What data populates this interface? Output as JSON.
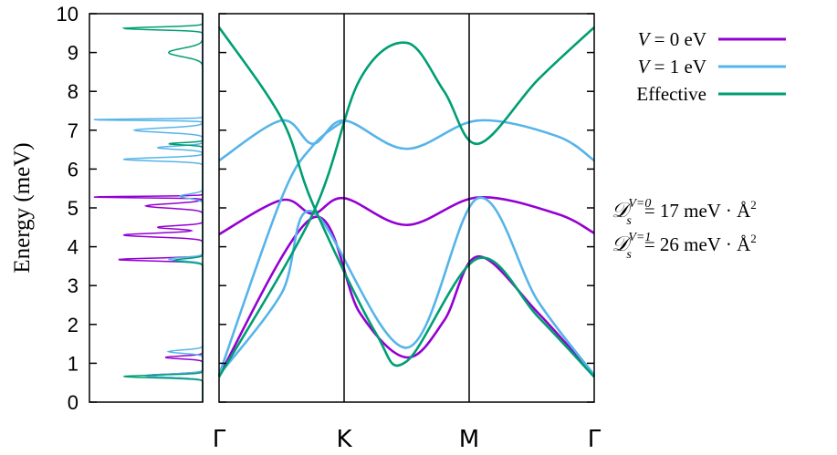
{
  "chart_data": [
    {
      "type": "line",
      "panel": "density-of-states",
      "ylabel": "Energy (meV)",
      "ylim": [
        0,
        10
      ],
      "yticks": [
        "0",
        "1",
        "2",
        "3",
        "4",
        "5",
        "6",
        "7",
        "8",
        "9",
        "10"
      ],
      "series": [
        {
          "color": "#9400d3",
          "peaks": [
            {
              "e": 0.68,
              "w": 0.06,
              "a": 0.5
            },
            {
              "e": 1.15,
              "w": 0.05,
              "a": 0.33
            },
            {
              "e": 3.67,
              "w": 0.05,
              "a": 0.75
            },
            {
              "e": 4.3,
              "w": 0.07,
              "a": 0.7
            },
            {
              "e": 4.5,
              "w": 0.06,
              "a": 0.4
            },
            {
              "e": 5.05,
              "w": 0.08,
              "a": 0.5
            },
            {
              "e": 5.28,
              "w": 0.025,
              "a": 1.0
            }
          ]
        },
        {
          "color": "#56b4e9",
          "peaks": [
            {
              "e": 0.68,
              "w": 0.06,
              "a": 0.5
            },
            {
              "e": 1.3,
              "w": 0.06,
              "a": 0.3
            },
            {
              "e": 3.68,
              "w": 0.06,
              "a": 0.3
            },
            {
              "e": 5.3,
              "w": 0.08,
              "a": 0.2
            },
            {
              "e": 6.25,
              "w": 0.06,
              "a": 0.7
            },
            {
              "e": 6.55,
              "w": 0.06,
              "a": 0.4
            },
            {
              "e": 7.0,
              "w": 0.08,
              "a": 0.6
            },
            {
              "e": 7.27,
              "w": 0.025,
              "a": 1.0
            }
          ]
        },
        {
          "color": "#009e73",
          "peaks": [
            {
              "e": 0.66,
              "w": 0.05,
              "a": 0.7
            },
            {
              "e": 3.65,
              "w": 0.06,
              "a": 0.25
            },
            {
              "e": 6.65,
              "w": 0.04,
              "a": 0.3
            },
            {
              "e": 9.0,
              "w": 0.15,
              "a": 0.3
            },
            {
              "e": 9.62,
              "w": 0.05,
              "a": 0.7
            }
          ]
        }
      ]
    },
    {
      "type": "line",
      "panel": "band-structure",
      "ylim": [
        0,
        10
      ],
      "x_ticks": [
        "Γ",
        "K",
        "M",
        "Γ"
      ],
      "legend_placement": "right",
      "series": [
        {
          "name": "V = 0 eV",
          "color": "#9400d3",
          "points": [
            {
              "x": 0,
              "y": 4.32
            },
            {
              "x": 0.333,
              "y": 5.2
            },
            {
              "x": 0.5,
              "y": 4.85
            },
            {
              "x": 0.667,
              "y": 5.25
            },
            {
              "x": 1.0,
              "y": 4.56
            },
            {
              "x": 1.38,
              "y": 5.27
            },
            {
              "x": 1.8,
              "y": 4.85
            },
            {
              "x": 2.0,
              "y": 4.35
            }
          ]
        },
        {
          "color": "#9400d3",
          "points": [
            {
              "x": 0,
              "y": 0.68
            },
            {
              "x": 0.5,
              "y": 4.75
            },
            {
              "x": 0.75,
              "y": 2.3
            },
            {
              "x": 1.0,
              "y": 1.15
            },
            {
              "x": 1.2,
              "y": 2.1
            },
            {
              "x": 1.38,
              "y": 3.75
            },
            {
              "x": 1.7,
              "y": 2.3
            },
            {
              "x": 2.0,
              "y": 0.68
            }
          ]
        },
        {
          "name": "V = 1 eV",
          "color": "#56b4e9",
          "points": [
            {
              "x": 0,
              "y": 6.22
            },
            {
              "x": 0.333,
              "y": 7.25
            },
            {
              "x": 0.5,
              "y": 6.65
            },
            {
              "x": 0.667,
              "y": 7.25
            },
            {
              "x": 1.0,
              "y": 6.52
            },
            {
              "x": 1.38,
              "y": 7.25
            },
            {
              "x": 1.8,
              "y": 6.85
            },
            {
              "x": 2.0,
              "y": 6.22
            }
          ]
        },
        {
          "color": "#56b4e9",
          "points": [
            {
              "x": 0,
              "y": 0.7
            },
            {
              "x": 0.333,
              "y": 5.25
            },
            {
              "x": 0.5,
              "y": 6.6
            },
            {
              "x": 0.667,
              "y": 7.25
            }
          ]
        },
        {
          "color": "#56b4e9",
          "points": [
            {
              "x": 0,
              "y": 0.7
            },
            {
              "x": 0.333,
              "y": 2.8
            },
            {
              "x": 0.5,
              "y": 4.9
            },
            {
              "x": 1.0,
              "y": 1.4
            },
            {
              "x": 1.38,
              "y": 5.25
            },
            {
              "x": 1.7,
              "y": 2.6
            },
            {
              "x": 2.0,
              "y": 0.7
            }
          ]
        },
        {
          "name": "Effective",
          "color": "#009e73",
          "points": [
            {
              "x": 0,
              "y": 9.65
            },
            {
              "x": 0.333,
              "y": 7.3
            },
            {
              "x": 0.5,
              "y": 5.1
            },
            {
              "x": 0.833,
              "y": 1.8
            },
            {
              "x": 1.0,
              "y": 1.05
            },
            {
              "x": 1.38,
              "y": 3.7
            },
            {
              "x": 1.7,
              "y": 2.2
            },
            {
              "x": 2.0,
              "y": 0.65
            }
          ]
        },
        {
          "color": "#009e73",
          "points": [
            {
              "x": 0,
              "y": 0.65
            },
            {
              "x": 0.5,
              "y": 4.85
            },
            {
              "x": 0.75,
              "y": 8.3
            },
            {
              "x": 1.0,
              "y": 9.25
            },
            {
              "x": 1.2,
              "y": 8.0
            },
            {
              "x": 1.38,
              "y": 6.65
            },
            {
              "x": 1.7,
              "y": 8.3
            },
            {
              "x": 2.0,
              "y": 9.65
            }
          ]
        }
      ],
      "annotations": {
        "eq1": {
          "lhs": "𝒟",
          "sub": "s",
          "sup": "V=0",
          "rhs": "= 17 meV · Å",
          "pow": "2"
        },
        "eq2": {
          "lhs": "𝒟",
          "sub": "s",
          "sup": "V=1",
          "rhs": "= 26 meV · Å",
          "pow": "2"
        }
      }
    }
  ]
}
